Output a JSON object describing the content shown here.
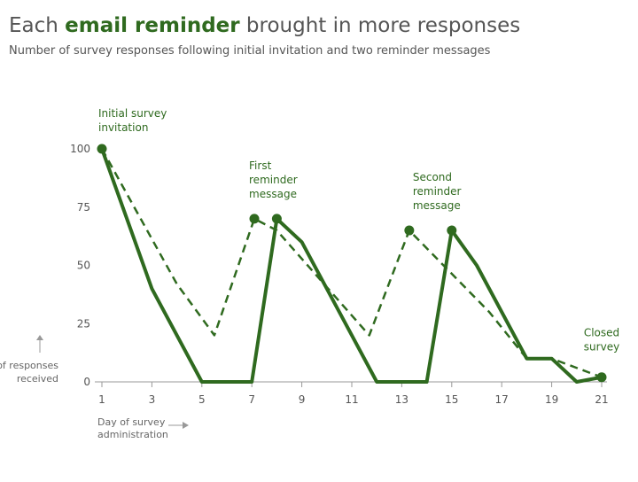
{
  "chart_data": {
    "type": "line",
    "title_start": "Each",
    "title_emphasis": "email reminder",
    "title_end": "brought in more responses",
    "subtitle": "Number of survey responses following initial invitation and two reminder messages",
    "ylabel": [
      "# of responses",
      "received"
    ],
    "xlabel": [
      "Day of survey",
      "administration"
    ],
    "xlim": [
      1,
      21
    ],
    "xticks": [
      1,
      3,
      5,
      7,
      9,
      11,
      13,
      15,
      17,
      19,
      21
    ],
    "ylim": [
      0,
      100
    ],
    "yticks": [
      0,
      25,
      50,
      75,
      100
    ],
    "grid": false,
    "series": [
      {
        "style": "solid",
        "color": "#2f6a1f",
        "x": [
          1,
          3,
          5,
          7,
          8,
          9,
          12,
          14,
          15,
          16,
          18,
          19,
          20,
          21
        ],
        "values": [
          100,
          40,
          0,
          0,
          70,
          60,
          0,
          0,
          65,
          50,
          10,
          10,
          0,
          2
        ]
      },
      {
        "style": "dashed",
        "color": "#2f6a1f",
        "x": [
          1,
          4,
          5.5,
          7.1,
          8,
          11.7,
          13.3,
          16.5,
          18,
          19,
          21
        ],
        "values": [
          100,
          42,
          20,
          70,
          65,
          20,
          65,
          30,
          10,
          10,
          2
        ]
      }
    ],
    "annotations": [
      {
        "lines": [
          "Initial survey",
          "invitation"
        ],
        "x": 1,
        "y": 100
      },
      {
        "lines": [
          "First",
          "reminder",
          "message"
        ],
        "x": 7.1,
        "y": 70
      },
      {
        "lines": [
          "First",
          "reminder",
          "message"
        ],
        "x": 8,
        "y": 70,
        "hidden": true
      },
      {
        "lines": [
          "Second",
          "reminder",
          "message"
        ],
        "x": 13.3,
        "y": 65
      },
      {
        "lines": [
          "Second",
          "reminder",
          "message"
        ],
        "x": 15,
        "y": 65,
        "hidden": true
      },
      {
        "lines": [
          "Closed",
          "survey"
        ],
        "x": 21,
        "y": 2
      }
    ]
  }
}
